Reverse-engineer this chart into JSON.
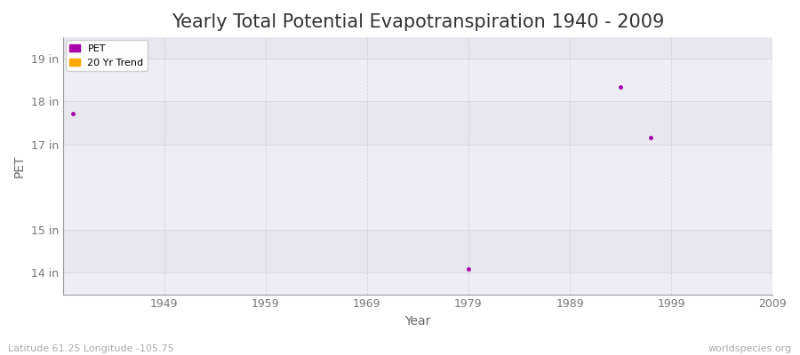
{
  "title": "Yearly Total Potential Evapotranspiration 1940 - 2009",
  "xlabel": "Year",
  "ylabel": "PET",
  "xlim": [
    1939,
    2009
  ],
  "ylim": [
    13.5,
    19.5
  ],
  "yticks": [
    14,
    15,
    17,
    18,
    19
  ],
  "ytick_labels": [
    "14 in",
    "15 in",
    "17 in",
    "18 in",
    "19 in"
  ],
  "xticks": [
    1949,
    1959,
    1969,
    1979,
    1989,
    1999,
    2009
  ],
  "background_color": "#f5f4f8",
  "plot_bg_color": "#eeedf3",
  "grid_color": "#d5d3e0",
  "pet_color": "#aa00aa",
  "trend_color": "#ffaa00",
  "pet_points": [
    [
      1940,
      17.72
    ],
    [
      1979,
      14.1
    ],
    [
      1994,
      18.35
    ],
    [
      1997,
      17.15
    ]
  ],
  "footer_left": "Latitude 61.25 Longitude -105.75",
  "footer_right": "worldspecies.org",
  "title_fontsize": 15,
  "axis_label_fontsize": 10,
  "tick_fontsize": 9,
  "footer_fontsize": 8,
  "band_colors": [
    "#eeedf3",
    "#e8e7ee"
  ]
}
